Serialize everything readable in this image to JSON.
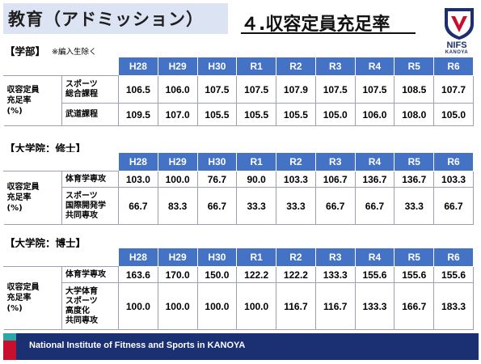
{
  "header": {
    "section_title": "教育（アドミッション）",
    "page_title": "４.収容定員充足率"
  },
  "logo": {
    "name": "NIFS",
    "sub": "KANOYA"
  },
  "years": [
    "H28",
    "H29",
    "H30",
    "R1",
    "R2",
    "R3",
    "R4",
    "R5",
    "R6"
  ],
  "row_label": [
    "収容定員",
    "充足率",
    "(%)"
  ],
  "undergrad": {
    "label": "【学部】",
    "note": "※編入生除く",
    "rows": [
      {
        "name": [
          "スポーツ",
          "総合課程"
        ],
        "values": [
          "106.5",
          "106.0",
          "107.5",
          "107.5",
          "107.9",
          "107.5",
          "107.5",
          "108.5",
          "107.7"
        ]
      },
      {
        "name": [
          "武道課程"
        ],
        "values": [
          "109.5",
          "107.0",
          "105.5",
          "105.5",
          "105.5",
          "105.0",
          "106.0",
          "108.0",
          "105.0"
        ]
      }
    ]
  },
  "masters": {
    "label": "【大学院：修士】",
    "rows": [
      {
        "name": [
          "体育学専攻"
        ],
        "values": [
          "103.0",
          "100.0",
          "76.7",
          "90.0",
          "103.3",
          "106.7",
          "136.7",
          "136.7",
          "103.3"
        ]
      },
      {
        "name": [
          "スポーツ",
          "国際開発学",
          "共同専攻"
        ],
        "values": [
          "66.7",
          "83.3",
          "66.7",
          "33.3",
          "33.3",
          "66.7",
          "66.7",
          "33.3",
          "66.7"
        ]
      }
    ]
  },
  "doctoral": {
    "label": "【大学院：博士】",
    "rows": [
      {
        "name": [
          "体育学専攻"
        ],
        "values": [
          "163.6",
          "170.0",
          "150.0",
          "122.2",
          "122.2",
          "133.3",
          "155.6",
          "155.6",
          "155.6"
        ]
      },
      {
        "name": [
          "大学体育",
          "スポーツ",
          "高度化",
          "共同専攻"
        ],
        "values": [
          "100.0",
          "100.0",
          "100.0",
          "100.0",
          "116.7",
          "116.7",
          "133.3",
          "166.7",
          "183.3"
        ]
      }
    ]
  },
  "footer": {
    "text": "National Institute of Fitness and Sports in KANOYA"
  },
  "colors": {
    "header_blue": "#4472c4",
    "footer_navy": "#1b2f73",
    "accent_red": "#c8102e",
    "title_box": "#dce3f2"
  }
}
